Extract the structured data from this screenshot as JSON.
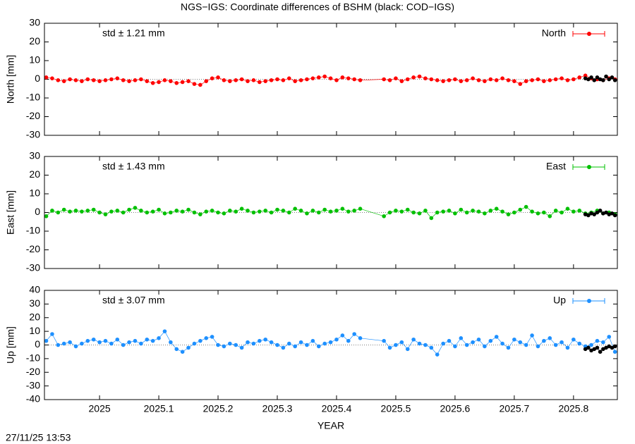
{
  "timestamp": "27/11/25 13:53",
  "chart_data": [
    {
      "type": "line",
      "title": "NGS−IGS: Coordinate differences of BSHM (black: COD−IGS)",
      "ylabel": "North [mm]",
      "annotation": "std ± 1.21 mm",
      "x": [
        2024.91,
        2024.92,
        2024.93,
        2024.94,
        2024.95,
        2024.96,
        2024.97,
        2024.98,
        2024.99,
        2025.0,
        2025.01,
        2025.02,
        2025.03,
        2025.04,
        2025.05,
        2025.06,
        2025.07,
        2025.08,
        2025.09,
        2025.1,
        2025.11,
        2025.12,
        2025.13,
        2025.14,
        2025.15,
        2025.16,
        2025.17,
        2025.18,
        2025.19,
        2025.2,
        2025.21,
        2025.22,
        2025.23,
        2025.24,
        2025.25,
        2025.26,
        2025.27,
        2025.28,
        2025.29,
        2025.3,
        2025.31,
        2025.32,
        2025.33,
        2025.34,
        2025.35,
        2025.36,
        2025.37,
        2025.38,
        2025.39,
        2025.4,
        2025.41,
        2025.42,
        2025.43,
        2025.44,
        2025.48,
        2025.49,
        2025.5,
        2025.51,
        2025.52,
        2025.53,
        2025.54,
        2025.55,
        2025.56,
        2025.57,
        2025.58,
        2025.59,
        2025.6,
        2025.61,
        2025.62,
        2025.63,
        2025.64,
        2025.65,
        2025.66,
        2025.67,
        2025.68,
        2025.69,
        2025.7,
        2025.71,
        2025.72,
        2025.73,
        2025.74,
        2025.75,
        2025.76,
        2025.77,
        2025.78,
        2025.79,
        2025.8,
        2025.81,
        2025.82,
        2025.83,
        2025.84,
        2025.85,
        2025.86,
        2025.87
      ],
      "series": [
        {
          "name": "North",
          "color": "#ff0000",
          "values": [
            1,
            0.5,
            -0.5,
            -1,
            0,
            -0.5,
            -1,
            0,
            -0.5,
            -1,
            -0.5,
            0,
            0.5,
            -0.5,
            -1,
            -0.5,
            0,
            -1,
            -2,
            -1.5,
            -0.5,
            -1,
            -2,
            -1.5,
            -1,
            -2.5,
            -3,
            -1,
            0.5,
            1,
            -0.5,
            -1,
            -0.5,
            0,
            -1,
            -0.5,
            -1.5,
            -1,
            -0.5,
            0,
            -0.5,
            0.5,
            -1,
            -0.5,
            0,
            0.5,
            1,
            1.5,
            0.5,
            -0.5,
            1,
            0.5,
            0,
            -0.5,
            0,
            -0.5,
            0.5,
            -1,
            0,
            1,
            1.5,
            0.5,
            0,
            -0.5,
            -1,
            -0.5,
            0,
            -1,
            -0.5,
            0.5,
            -0.5,
            -1,
            0,
            -0.5,
            0.5,
            -0.5,
            -1,
            -2.5,
            -1,
            -0.5,
            0,
            -1,
            -0.5,
            0,
            0.5,
            -0.5,
            0,
            1,
            2,
            0.5,
            0,
            -0.5,
            0.5,
            0
          ]
        },
        {
          "color": "#000000",
          "x": [
            2025.82,
            2025.825,
            2025.83,
            2025.835,
            2025.84,
            2025.845,
            2025.85,
            2025.855,
            2025.86,
            2025.865,
            2025.87
          ],
          "values": [
            0.5,
            0,
            1,
            -0.5,
            1,
            0,
            -0.5,
            1.5,
            0,
            1,
            -0.5
          ]
        }
      ],
      "xlim": [
        2024.907,
        2025.874
      ],
      "xticks": [
        2025,
        2025.1,
        2025.2,
        2025.3,
        2025.4,
        2025.5,
        2025.6,
        2025.7,
        2025.8
      ],
      "ylim": [
        -30,
        30
      ],
      "yticks": [
        -30,
        -20,
        -10,
        0,
        10,
        20,
        30
      ],
      "zero_line": true,
      "legend": "upper right"
    },
    {
      "type": "line",
      "ylabel": "East [mm]",
      "annotation": "std ± 1.43 mm",
      "x": [
        2024.91,
        2024.92,
        2024.93,
        2024.94,
        2024.95,
        2024.96,
        2024.97,
        2024.98,
        2024.99,
        2025.0,
        2025.01,
        2025.02,
        2025.03,
        2025.04,
        2025.05,
        2025.06,
        2025.07,
        2025.08,
        2025.09,
        2025.1,
        2025.11,
        2025.12,
        2025.13,
        2025.14,
        2025.15,
        2025.16,
        2025.17,
        2025.18,
        2025.19,
        2025.2,
        2025.21,
        2025.22,
        2025.23,
        2025.24,
        2025.25,
        2025.26,
        2025.27,
        2025.28,
        2025.29,
        2025.3,
        2025.31,
        2025.32,
        2025.33,
        2025.34,
        2025.35,
        2025.36,
        2025.37,
        2025.38,
        2025.39,
        2025.4,
        2025.41,
        2025.42,
        2025.43,
        2025.44,
        2025.48,
        2025.49,
        2025.5,
        2025.51,
        2025.52,
        2025.53,
        2025.54,
        2025.55,
        2025.56,
        2025.57,
        2025.58,
        2025.59,
        2025.6,
        2025.61,
        2025.62,
        2025.63,
        2025.64,
        2025.65,
        2025.66,
        2025.67,
        2025.68,
        2025.69,
        2025.7,
        2025.71,
        2025.72,
        2025.73,
        2025.74,
        2025.75,
        2025.76,
        2025.77,
        2025.78,
        2025.79,
        2025.8,
        2025.81,
        2025.82,
        2025.83,
        2025.84,
        2025.85,
        2025.86,
        2025.87
      ],
      "series": [
        {
          "name": "East",
          "color": "#00c000",
          "values": [
            -2,
            1,
            0,
            1.5,
            0.5,
            1,
            0.5,
            1,
            1.5,
            0,
            -1,
            0.5,
            1,
            0,
            1.5,
            2.5,
            1,
            0,
            0.5,
            1.5,
            -0.5,
            0,
            1,
            0.5,
            1.5,
            0,
            -1,
            0.5,
            1,
            0,
            -0.5,
            1,
            0.5,
            2,
            1,
            0,
            0.5,
            1,
            0,
            1.5,
            1,
            0,
            2,
            1,
            -0.5,
            1,
            0,
            1.5,
            0.5,
            1,
            2,
            0.5,
            1,
            2,
            -2,
            0,
            1,
            0.5,
            1.5,
            0,
            -0.5,
            1,
            -3,
            0,
            0.5,
            1,
            -0.5,
            1.5,
            0,
            1,
            0.5,
            -0.5,
            1,
            2,
            0.5,
            -1,
            0,
            1.5,
            3,
            0.5,
            -0.5,
            0,
            -2,
            1,
            0,
            2,
            0.5,
            1,
            -0.5,
            0,
            1,
            -0.5,
            0,
            -1
          ]
        },
        {
          "color": "#000000",
          "x": [
            2025.82,
            2025.825,
            2025.83,
            2025.835,
            2025.84,
            2025.845,
            2025.85,
            2025.855,
            2025.86,
            2025.865,
            2025.87
          ],
          "values": [
            -1,
            -1.5,
            -0.5,
            -1,
            0,
            1,
            -0.5,
            0,
            -1,
            -0.5,
            -1.5
          ]
        }
      ],
      "xlim": [
        2024.907,
        2025.874
      ],
      "xticks": [
        2025,
        2025.1,
        2025.2,
        2025.3,
        2025.4,
        2025.5,
        2025.6,
        2025.7,
        2025.8
      ],
      "ylim": [
        -30,
        30
      ],
      "yticks": [
        -30,
        -20,
        -10,
        0,
        10,
        20,
        30
      ],
      "zero_line": true,
      "legend": "upper right"
    },
    {
      "type": "line",
      "ylabel": "Up [mm]",
      "annotation": "std ± 3.07 mm",
      "xlabel": "YEAR",
      "x": [
        2024.91,
        2024.92,
        2024.93,
        2024.94,
        2024.95,
        2024.96,
        2024.97,
        2024.98,
        2024.99,
        2025.0,
        2025.01,
        2025.02,
        2025.03,
        2025.04,
        2025.05,
        2025.06,
        2025.07,
        2025.08,
        2025.09,
        2025.1,
        2025.11,
        2025.12,
        2025.13,
        2025.14,
        2025.15,
        2025.16,
        2025.17,
        2025.18,
        2025.19,
        2025.2,
        2025.21,
        2025.22,
        2025.23,
        2025.24,
        2025.25,
        2025.26,
        2025.27,
        2025.28,
        2025.29,
        2025.3,
        2025.31,
        2025.32,
        2025.33,
        2025.34,
        2025.35,
        2025.36,
        2025.37,
        2025.38,
        2025.39,
        2025.4,
        2025.41,
        2025.42,
        2025.43,
        2025.44,
        2025.48,
        2025.49,
        2025.5,
        2025.51,
        2025.52,
        2025.53,
        2025.54,
        2025.55,
        2025.56,
        2025.57,
        2025.58,
        2025.59,
        2025.6,
        2025.61,
        2025.62,
        2025.63,
        2025.64,
        2025.65,
        2025.66,
        2025.67,
        2025.68,
        2025.69,
        2025.7,
        2025.71,
        2025.72,
        2025.73,
        2025.74,
        2025.75,
        2025.76,
        2025.77,
        2025.78,
        2025.79,
        2025.8,
        2025.81,
        2025.82,
        2025.83,
        2025.84,
        2025.85,
        2025.86,
        2025.87
      ],
      "series": [
        {
          "name": "Up",
          "color": "#1e90ff",
          "values": [
            3,
            8,
            0,
            1,
            2,
            -1,
            1,
            3,
            4,
            2,
            3,
            1,
            4,
            0,
            2,
            3,
            1,
            4,
            3,
            5,
            10,
            2,
            -3,
            -5,
            -2,
            1,
            3,
            5,
            6,
            0,
            -1,
            1,
            0,
            -2,
            2,
            1,
            3,
            4,
            2,
            0,
            -2,
            1,
            -1,
            2,
            0,
            3,
            -1,
            1,
            2,
            4,
            7,
            3,
            8,
            5,
            3,
            -2,
            0,
            2,
            -3,
            4,
            1,
            0,
            -2,
            -7,
            1,
            3,
            -1,
            5,
            0,
            2,
            4,
            -1,
            3,
            6,
            1,
            -2,
            4,
            2,
            0,
            7,
            -1,
            3,
            5,
            0,
            2,
            -2,
            4,
            1,
            -1,
            0,
            3,
            2,
            6,
            -5
          ]
        },
        {
          "color": "#000000",
          "x": [
            2025.82,
            2025.825,
            2025.83,
            2025.835,
            2025.84,
            2025.845,
            2025.85,
            2025.855,
            2025.86,
            2025.865,
            2025.87
          ],
          "values": [
            -3,
            -2,
            -4,
            -3,
            -2,
            -5,
            -3,
            -2,
            -1,
            -2,
            -1
          ]
        }
      ],
      "xlim": [
        2024.907,
        2025.874
      ],
      "xticks": [
        2025,
        2025.1,
        2025.2,
        2025.3,
        2025.4,
        2025.5,
        2025.6,
        2025.7,
        2025.8
      ],
      "xtick_labels": true,
      "ylim": [
        -40,
        40
      ],
      "yticks": [
        -40,
        -30,
        -20,
        -10,
        0,
        10,
        20,
        30,
        40
      ],
      "zero_line": true,
      "legend": "upper right"
    }
  ]
}
